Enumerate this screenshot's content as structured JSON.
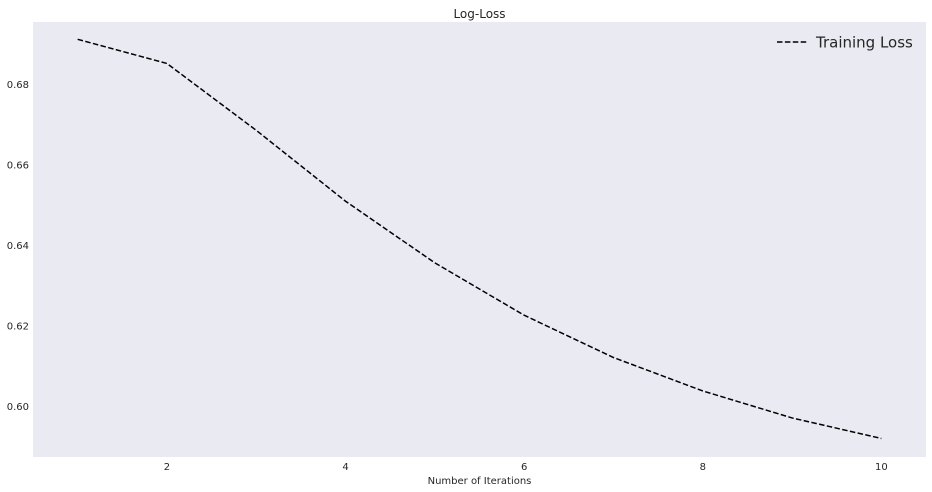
{
  "chart_data": {
    "type": "line",
    "title": "Log-Loss",
    "xlabel": "Number of Iterations",
    "ylabel": "",
    "xlim": [
      0.5,
      10.5
    ],
    "ylim": [
      0.5875,
      0.6955
    ],
    "xticks": [
      2,
      4,
      6,
      8,
      10
    ],
    "xtick_labels": [
      "2",
      "4",
      "6",
      "8",
      "10"
    ],
    "yticks": [
      0.6,
      0.62,
      0.64,
      0.66,
      0.68
    ],
    "ytick_labels": [
      "0.60",
      "0.62",
      "0.64",
      "0.66",
      "0.68"
    ],
    "grid": false,
    "legend_position": "top-right",
    "series": [
      {
        "name": "Training Loss",
        "line_style": "dashed",
        "color": "#000000",
        "x": [
          1,
          2,
          3,
          4,
          5,
          6,
          7,
          8,
          9,
          10
        ],
        "y": [
          0.6912,
          0.6852,
          0.6686,
          0.651,
          0.6357,
          0.6227,
          0.6122,
          0.6039,
          0.5972,
          0.5921
        ]
      }
    ]
  },
  "colors": {
    "plot_background": "#eaeaf2",
    "figure_background": "#ffffff",
    "text": "#262626",
    "line": "#000000"
  }
}
